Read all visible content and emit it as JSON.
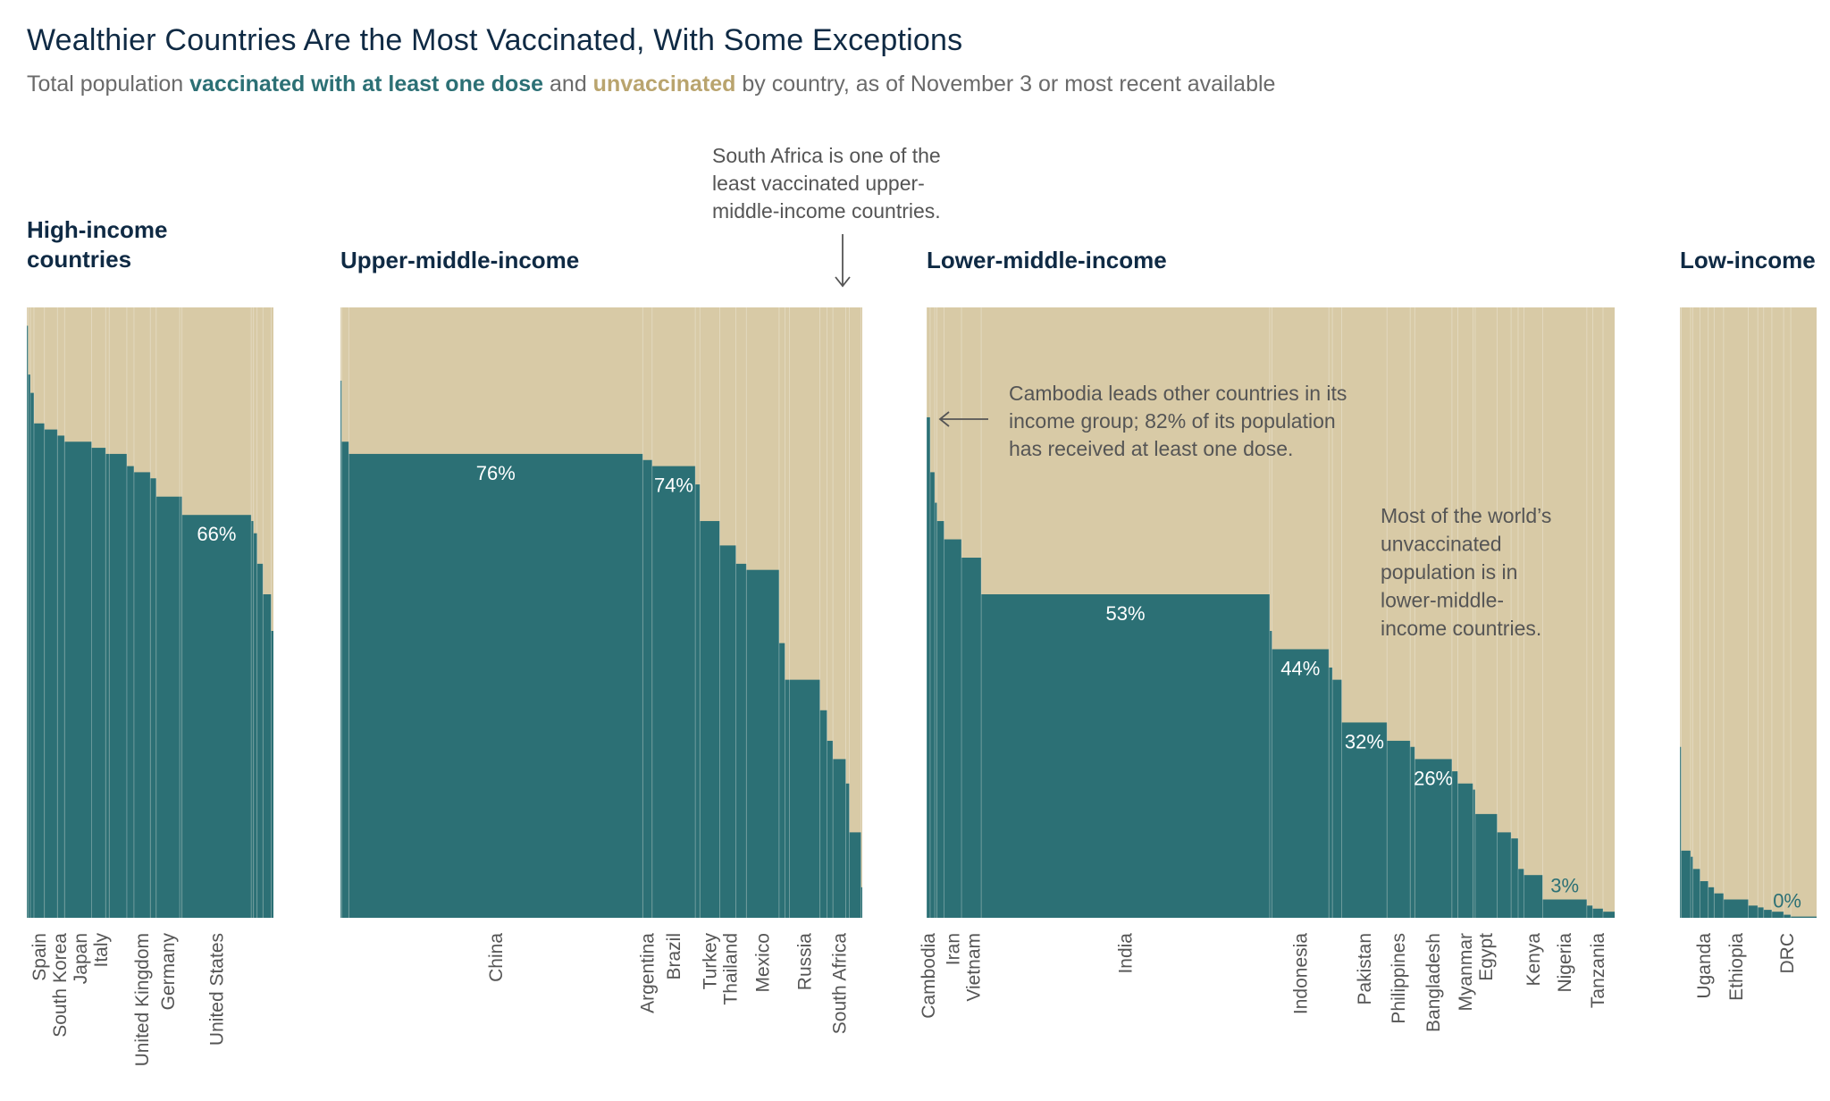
{
  "title": "Wealthier Countries Are the Most Vaccinated, With Some Exceptions",
  "subtitle": {
    "pre": "Total population ",
    "vaccinated": "vaccinated with at least one dose",
    "mid": " and ",
    "unvaccinated": "unvaccinated",
    "post": " by country, as of November 3 or most recent available"
  },
  "colors": {
    "vaccinated": "#2c7075",
    "unvaccinated": "#d8caa6",
    "title": "#0f2a44"
  },
  "chart_data": {
    "type": "bar",
    "variant": "marimekko (bar width = population, height = share vaccinated)",
    "yunit": "% of population vaccinated with at least one dose",
    "ylim": [
      0,
      100
    ],
    "segment_fields": [
      "country",
      "vaccinated_pct",
      "population_millions_approx",
      "value_label",
      "value_label_position"
    ],
    "groups": [
      {
        "name": "High-income countries",
        "name_lines": [
          "High-income",
          "countries"
        ],
        "segments": [
          [
            "",
            97,
            6
          ],
          [
            "",
            89,
            11
          ],
          [
            "",
            86,
            17
          ],
          [
            "Spain",
            81,
            50
          ],
          [
            "South Korea",
            80,
            62
          ],
          [
            "",
            79,
            34
          ],
          [
            "Japan",
            78,
            129
          ],
          [
            "Italy",
            77,
            67
          ],
          [
            "",
            76,
            17
          ],
          [
            "",
            76,
            84
          ],
          [
            "",
            74,
            34
          ],
          [
            "United Kingdom",
            73,
            78
          ],
          [
            "",
            72,
            28
          ],
          [
            "Germany",
            69,
            112
          ],
          [
            "",
            69,
            11
          ],
          [
            "United States",
            66,
            330,
            "66%",
            "in"
          ],
          [
            "",
            65,
            11
          ],
          [
            "",
            63,
            17
          ],
          [
            "",
            58,
            28
          ],
          [
            "",
            53,
            39
          ],
          [
            "",
            47,
            11
          ]
        ]
      },
      {
        "name": "Upper-middle-income",
        "name_lines": [
          "Upper-middle-income"
        ],
        "segments": [
          [
            "",
            88,
            6
          ],
          [
            "",
            78,
            34
          ],
          [
            "China",
            76,
            1410,
            "76%",
            "in"
          ],
          [
            "Argentina",
            75,
            45
          ],
          [
            "Brazil",
            74,
            207,
            "74%",
            "in"
          ],
          [
            "",
            71,
            22
          ],
          [
            "Turkey",
            65,
            95
          ],
          [
            "Thailand",
            61,
            78
          ],
          [
            "",
            58,
            50
          ],
          [
            "Mexico",
            57,
            157
          ],
          [
            "",
            45,
            28
          ],
          [
            "",
            39,
            22
          ],
          [
            "Russia",
            39,
            146
          ],
          [
            "",
            34,
            34
          ],
          [
            "",
            29,
            28
          ],
          [
            "South Africa",
            26,
            62
          ],
          [
            "",
            22,
            17
          ],
          [
            "",
            14,
            56
          ],
          [
            "",
            5,
            6
          ]
        ]
      },
      {
        "name": "Lower-middle-income",
        "name_lines": [
          "Lower-middle-income"
        ],
        "segments": [
          [
            "Cambodia",
            82,
            17
          ],
          [
            "",
            73,
            22
          ],
          [
            "",
            68,
            11
          ],
          [
            "",
            65,
            34
          ],
          [
            "Iran",
            62,
            84
          ],
          [
            "Vietnam",
            59,
            95
          ],
          [
            "India",
            53,
            1390,
            "53%",
            "in"
          ],
          [
            "",
            47,
            11
          ],
          [
            "Indonesia",
            44,
            274,
            "44%",
            "in"
          ],
          [
            "",
            41,
            17
          ],
          [
            "",
            39,
            45
          ],
          [
            "Pakistan",
            32,
            218,
            "32%",
            "in"
          ],
          [
            "Philippines",
            29,
            112
          ],
          [
            "",
            28,
            22
          ],
          [
            "Bangladesh",
            26,
            179,
            "26%",
            "in"
          ],
          [
            "",
            24,
            28
          ],
          [
            "Myanmar",
            22,
            73
          ],
          [
            "",
            21,
            11
          ],
          [
            "Egypt",
            17,
            106
          ],
          [
            "",
            14,
            67
          ],
          [
            "",
            13,
            34
          ],
          [
            "",
            8,
            28
          ],
          [
            "Kenya",
            7,
            90
          ],
          [
            "Nigeria",
            3,
            213,
            "3%",
            "above"
          ],
          [
            "",
            2,
            28
          ],
          [
            "Tanzania",
            1.5,
            50
          ],
          [
            "",
            1,
            56
          ]
        ]
      },
      {
        "name": "Low-income",
        "name_lines": [
          "Low-income"
        ],
        "segments": [
          [
            "",
            28,
            6
          ],
          [
            "",
            11,
            45
          ],
          [
            "",
            10,
            11
          ],
          [
            "",
            8,
            34
          ],
          [
            "Uganda",
            6,
            39
          ],
          [
            "",
            5,
            28
          ],
          [
            "",
            4,
            45
          ],
          [
            "Ethiopia",
            3,
            118
          ],
          [
            "",
            2,
            45
          ],
          [
            "",
            1.7,
            28
          ],
          [
            "",
            1.3,
            39
          ],
          [
            "",
            1,
            56
          ],
          [
            "DRC",
            0.5,
            34,
            "0%",
            "above"
          ],
          [
            "",
            0.2,
            123
          ]
        ]
      }
    ]
  },
  "annotations": {
    "south_africa": [
      "South Africa is one of the",
      "least vaccinated upper-",
      "middle-income countries."
    ],
    "cambodia": [
      "Cambodia leads other countries in its",
      "income group; 82% of its population",
      "has received at least one dose."
    ],
    "unvaccinated": [
      "Most of the world’s",
      "unvaccinated",
      "population is in",
      "lower-middle-",
      "income countries."
    ]
  }
}
